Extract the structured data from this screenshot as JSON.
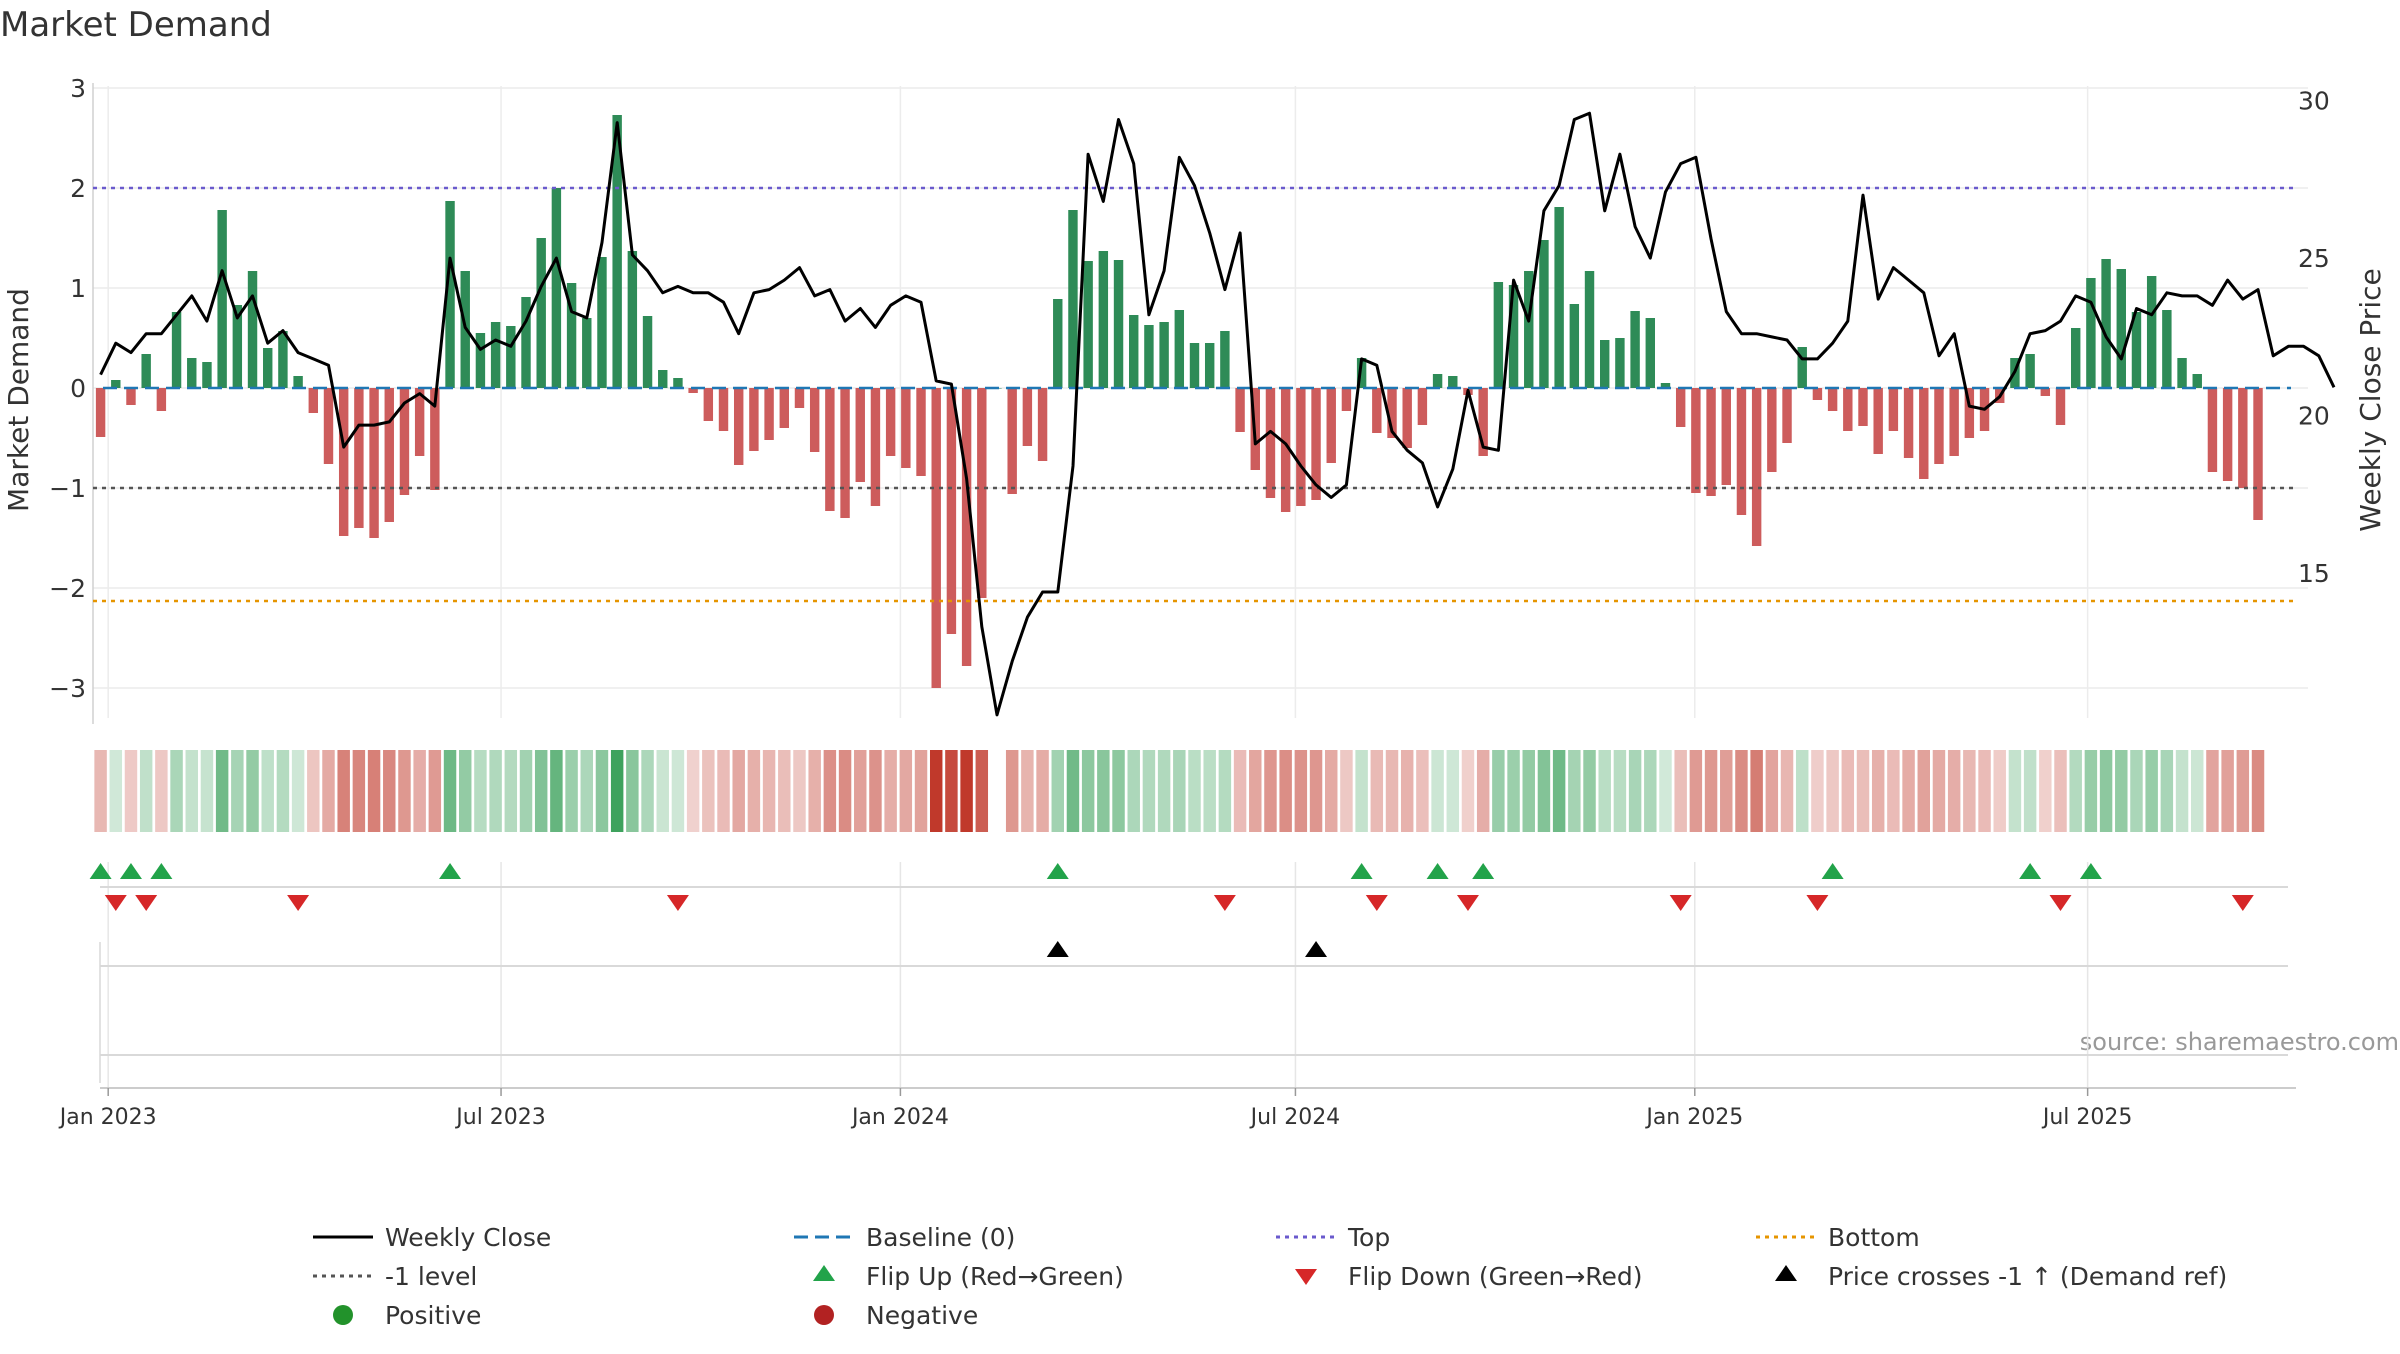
{
  "chart_data": {
    "type": "bar",
    "title": "Market Demand",
    "ylabel_left": "Market Demand",
    "ylabel_right": "Weekly Close Price",
    "ylim_left": [
      -3.3,
      3.0
    ],
    "yticks_left": [
      -3,
      -2,
      -1,
      0,
      1,
      2,
      3
    ],
    "ytick_labels_left": [
      "−3",
      "−2",
      "−1",
      "0",
      "1",
      "2",
      "3"
    ],
    "ylim_right": [
      10.4,
      30.4
    ],
    "yticks_right": [
      15,
      20,
      25,
      30
    ],
    "ytick_labels_right": [
      "15",
      "20",
      "25",
      "30"
    ],
    "top_level": 2.0,
    "neg_level": -1.0,
    "bottom_level": -2.13,
    "x_start": "2022-12-25",
    "x_end": "2025-10-05",
    "x_tick_dates": [
      "2023-01-01",
      "2023-07-01",
      "2024-01-01",
      "2024-07-01",
      "2025-01-01",
      "2025-07-01"
    ],
    "x_tick_labels": [
      "Jan 2023",
      "Jul 2023",
      "Jan 2024",
      "Jul 2024",
      "Jan 2025",
      "Jul 2025"
    ],
    "first_week": "2022-12-25",
    "week_demand": [
      -0.49,
      0.08,
      -0.17,
      0.34,
      -0.23,
      0.76,
      0.3,
      0.26,
      1.78,
      0.83,
      1.17,
      0.4,
      0.57,
      0.12,
      -0.25,
      -0.76,
      -1.48,
      -1.4,
      -1.5,
      -1.34,
      -1.07,
      -0.68,
      -1.02,
      1.87,
      1.17,
      0.55,
      0.66,
      0.62,
      0.91,
      1.5,
      2.0,
      1.05,
      0.7,
      1.31,
      2.73,
      1.37,
      0.72,
      0.18,
      0.1,
      -0.05,
      -0.33,
      -0.43,
      -0.77,
      -0.63,
      -0.52,
      -0.4,
      -0.2,
      -0.64,
      -1.23,
      -1.3,
      -0.94,
      -1.18,
      -0.68,
      -0.8,
      -0.88,
      -3.0,
      -2.46,
      -2.78,
      -2.1,
      -0.0,
      -1.06,
      -0.58,
      -0.73,
      0.89,
      1.78,
      1.27,
      1.37,
      1.28,
      0.73,
      0.63,
      0.66,
      0.78,
      0.45,
      0.45,
      0.57,
      -0.44,
      -0.82,
      -1.1,
      -1.24,
      -1.18,
      -1.12,
      -0.75,
      -0.23,
      0.3,
      -0.45,
      -0.5,
      -0.6,
      -0.37,
      0.14,
      0.12,
      -0.07,
      -0.68,
      1.06,
      1.03,
      1.17,
      1.48,
      1.81,
      0.84,
      1.17,
      0.48,
      0.5,
      0.77,
      0.7,
      0.05,
      -0.39,
      -1.05,
      -1.08,
      -0.97,
      -1.27,
      -1.58,
      -0.84,
      -0.55,
      0.41,
      -0.12,
      -0.23,
      -0.43,
      -0.38,
      -0.66,
      -0.43,
      -0.7,
      -0.91,
      -0.76,
      -0.68,
      -0.5,
      -0.43,
      -0.15,
      0.3,
      0.34,
      -0.08,
      -0.37,
      0.6,
      1.1,
      1.29,
      1.19,
      0.76,
      1.12,
      0.78,
      0.3,
      0.14,
      -0.84,
      -0.93,
      -1.0,
      -1.32
    ],
    "weekly_close": [
      21.3,
      22.3,
      22.0,
      22.6,
      22.6,
      23.2,
      23.8,
      23.0,
      24.6,
      23.1,
      23.8,
      22.3,
      22.7,
      22.0,
      21.8,
      21.6,
      19.0,
      19.7,
      19.7,
      19.8,
      20.4,
      20.7,
      20.3,
      25.0,
      22.8,
      22.1,
      22.4,
      22.2,
      23.0,
      24.1,
      25.0,
      23.3,
      23.1,
      25.5,
      29.3,
      25.1,
      24.6,
      23.9,
      24.1,
      23.9,
      23.9,
      23.6,
      22.6,
      23.9,
      24.0,
      24.3,
      24.7,
      23.8,
      24.0,
      23.0,
      23.4,
      22.8,
      23.5,
      23.8,
      23.6,
      21.1,
      21.0,
      18.0,
      13.3,
      10.5,
      12.2,
      13.6,
      14.4,
      14.4,
      18.4,
      28.3,
      26.8,
      29.4,
      28.0,
      23.2,
      24.6,
      28.2,
      27.3,
      25.8,
      24.0,
      25.8,
      19.1,
      19.5,
      19.1,
      18.4,
      17.8,
      17.4,
      17.8,
      21.8,
      21.6,
      19.5,
      18.9,
      18.5,
      17.1,
      18.3,
      20.8,
      19.0,
      18.9,
      24.3,
      23.0,
      26.5,
      27.3,
      29.4,
      29.6,
      26.5,
      28.3,
      26.0,
      25.0,
      27.1,
      28.0,
      28.2,
      25.6,
      23.3,
      22.6,
      22.6,
      22.5,
      22.4,
      21.8,
      21.8,
      22.3,
      23.0,
      27.0,
      23.7,
      24.7,
      24.3,
      23.9,
      21.9,
      22.6,
      20.3,
      20.2,
      20.6,
      21.4,
      22.6,
      22.7,
      23.0,
      23.8,
      23.6,
      22.5,
      21.8,
      23.4,
      23.2,
      23.9,
      23.8,
      23.8,
      23.5,
      24.3,
      23.7,
      24.0,
      21.9,
      22.2,
      22.2,
      21.9,
      20.9
    ],
    "flip_up_weeks": [
      0,
      2,
      4,
      23,
      63,
      83,
      88,
      91,
      114,
      127,
      131
    ],
    "flip_down_weeks": [
      1,
      3,
      13,
      38,
      74,
      84,
      90,
      104,
      113,
      129,
      141
    ],
    "cross_up_weeks": [
      63,
      80
    ],
    "legend": {
      "weekly_close": "Weekly Close",
      "baseline": "Baseline (0)",
      "top": "Top",
      "bottom": "Bottom",
      "neg_level": "-1 level",
      "flip_up": "Flip Up (Red→Green)",
      "flip_down": "Flip Down (Green→Red)",
      "price_cross": "Price crosses -1 ↑ (Demand ref)",
      "positive": "Positive",
      "negative": "Negative"
    },
    "legend_placement": "bottom-center",
    "source": "source: sharemaestro.com",
    "colors": {
      "positive_bar": "#2e8b57",
      "negative_bar": "#cd5c5c",
      "price_line": "#000000",
      "baseline": "#1f77b4",
      "top": "#6a5acd",
      "neg_level": "#555555",
      "bottom": "#e69500",
      "flip_up": "#22a34a",
      "flip_down": "#d62728",
      "cross": "#000000",
      "positive_dot": "#22922b",
      "negative_dot": "#b22222",
      "heat_pos": "#3aa05a",
      "heat_neg": "#c0392b"
    }
  }
}
